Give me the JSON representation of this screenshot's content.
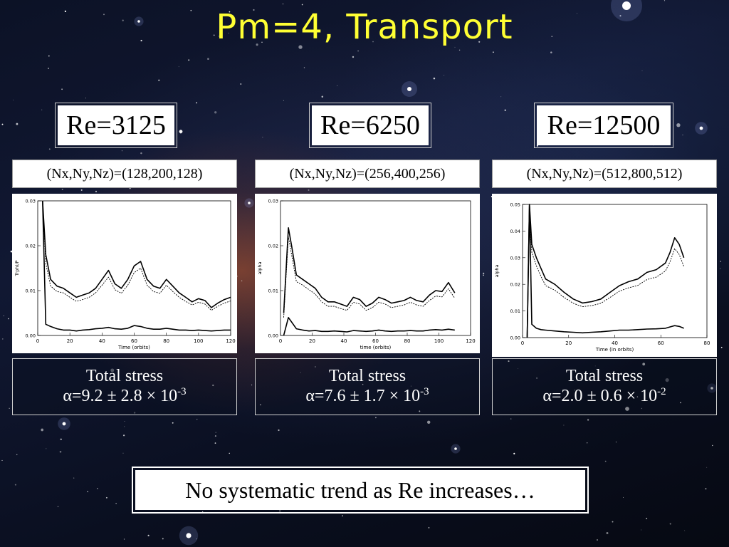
{
  "title": "Pm=4, Transport",
  "conclusion": "No systematic trend as Re increases…",
  "panels": [
    {
      "re": "Re=3125",
      "resolution": "(Nx,Ny,Nz)=(128,200,128)",
      "stress_label": "Total stress",
      "alpha_text": "α=9.2 ± 2.8 × 10",
      "alpha_exp": "-3"
    },
    {
      "re": "Re=6250",
      "resolution": "(Nx,Ny,Nz)=(256,400,256)",
      "stress_label": "Total stress",
      "alpha_text": "α=7.6 ± 1.7 × 10",
      "alpha_exp": "-3"
    },
    {
      "re": "Re=12500",
      "resolution": "(Nx,Ny,Nz)=(512,800,512)",
      "stress_label": "Total stress",
      "alpha_text": "α=2.0 ± 0.6 × 10",
      "alpha_exp": "-2"
    }
  ],
  "chart_data": [
    {
      "type": "line",
      "xlabel": "Time (orbits)",
      "ylabel": "Trphi/P",
      "xlim": [
        0,
        120
      ],
      "ylim": [
        0,
        0.03
      ],
      "xticks": [
        "0",
        "20",
        "40",
        "60",
        "80",
        "100",
        "120"
      ],
      "yticks": [
        "0.00",
        "0.01",
        "0.02",
        "0.03"
      ],
      "series": [
        {
          "style": "solid",
          "x": [
            3,
            5,
            8,
            12,
            16,
            20,
            24,
            28,
            32,
            36,
            40,
            44,
            48,
            52,
            56,
            60,
            64,
            68,
            72,
            76,
            80,
            84,
            88,
            92,
            96,
            100,
            104,
            108,
            112,
            116,
            120
          ],
          "values": [
            0.03,
            0.018,
            0.0125,
            0.011,
            0.0105,
            0.0095,
            0.0085,
            0.009,
            0.0095,
            0.0105,
            0.0125,
            0.0145,
            0.0115,
            0.0105,
            0.0125,
            0.0155,
            0.0165,
            0.0125,
            0.011,
            0.0105,
            0.0125,
            0.011,
            0.0095,
            0.0085,
            0.0075,
            0.0082,
            0.0078,
            0.0062,
            0.0072,
            0.008,
            0.0085
          ]
        },
        {
          "style": "dashed",
          "x": [
            3,
            5,
            8,
            12,
            16,
            20,
            24,
            28,
            32,
            36,
            40,
            44,
            48,
            52,
            56,
            60,
            64,
            68,
            72,
            76,
            80,
            84,
            88,
            92,
            96,
            100,
            104,
            108,
            112,
            116,
            120
          ],
          "values": [
            0.03,
            0.016,
            0.011,
            0.0098,
            0.0095,
            0.0085,
            0.0076,
            0.008,
            0.0085,
            0.0095,
            0.0112,
            0.013,
            0.0102,
            0.0094,
            0.0112,
            0.014,
            0.015,
            0.0112,
            0.0098,
            0.0094,
            0.0112,
            0.0098,
            0.0085,
            0.0076,
            0.0068,
            0.0074,
            0.007,
            0.0056,
            0.0065,
            0.0072,
            0.0077
          ]
        },
        {
          "style": "solid",
          "x": [
            3,
            5,
            8,
            12,
            16,
            20,
            24,
            28,
            32,
            36,
            40,
            44,
            48,
            52,
            56,
            60,
            64,
            68,
            72,
            76,
            80,
            84,
            88,
            92,
            96,
            100,
            104,
            108,
            112,
            116,
            120
          ],
          "values": [
            0.03,
            0.0025,
            0.002,
            0.0015,
            0.0012,
            0.0012,
            0.001,
            0.0012,
            0.0013,
            0.0015,
            0.0016,
            0.0018,
            0.0015,
            0.0014,
            0.0016,
            0.0022,
            0.002,
            0.0016,
            0.0014,
            0.0014,
            0.0016,
            0.0014,
            0.0012,
            0.0012,
            0.0011,
            0.0012,
            0.0011,
            0.001,
            0.0011,
            0.0012,
            0.0012
          ]
        }
      ]
    },
    {
      "type": "line",
      "xlabel": "time (orbits)",
      "ylabel": "alpha",
      "xlim": [
        0,
        120
      ],
      "ylim": [
        0,
        0.03
      ],
      "xticks": [
        "0",
        "20",
        "40",
        "60",
        "80",
        "100",
        "120"
      ],
      "yticks": [
        "0.00",
        "0.01",
        "0.02",
        "0.03"
      ],
      "series": [
        {
          "style": "solid",
          "x": [
            2,
            5,
            7,
            10,
            14,
            18,
            22,
            26,
            30,
            34,
            38,
            42,
            46,
            50,
            54,
            58,
            62,
            66,
            70,
            74,
            78,
            82,
            86,
            90,
            94,
            98,
            102,
            106,
            110
          ],
          "values": [
            0.005,
            0.024,
            0.02,
            0.0135,
            0.0125,
            0.0115,
            0.0105,
            0.0085,
            0.0075,
            0.0075,
            0.007,
            0.0065,
            0.0085,
            0.008,
            0.0065,
            0.0072,
            0.0085,
            0.008,
            0.0072,
            0.0075,
            0.0078,
            0.0085,
            0.0078,
            0.0075,
            0.009,
            0.01,
            0.0098,
            0.0118,
            0.0095
          ]
        },
        {
          "style": "dashed",
          "x": [
            2,
            5,
            7,
            10,
            14,
            18,
            22,
            26,
            30,
            34,
            38,
            42,
            46,
            50,
            54,
            58,
            62,
            66,
            70,
            74,
            78,
            82,
            86,
            90,
            94,
            98,
            102,
            106,
            110
          ],
          "values": [
            0.004,
            0.022,
            0.018,
            0.012,
            0.0112,
            0.0102,
            0.0092,
            0.0075,
            0.0065,
            0.0065,
            0.006,
            0.0056,
            0.0074,
            0.007,
            0.0056,
            0.0062,
            0.0074,
            0.007,
            0.0062,
            0.0065,
            0.0068,
            0.0074,
            0.0068,
            0.0065,
            0.0078,
            0.0088,
            0.0086,
            0.0104,
            0.0083
          ]
        },
        {
          "style": "solid",
          "x": [
            2,
            5,
            7,
            10,
            14,
            18,
            22,
            26,
            30,
            34,
            38,
            42,
            46,
            50,
            54,
            58,
            62,
            66,
            70,
            74,
            78,
            82,
            86,
            90,
            94,
            98,
            102,
            106,
            110
          ],
          "values": [
            0.0,
            0.004,
            0.003,
            0.0015,
            0.0012,
            0.001,
            0.0011,
            0.0009,
            0.0009,
            0.001,
            0.0009,
            0.0008,
            0.0011,
            0.001,
            0.0009,
            0.001,
            0.0012,
            0.001,
            0.0009,
            0.001,
            0.001,
            0.0011,
            0.001,
            0.001,
            0.0012,
            0.0013,
            0.0012,
            0.0014,
            0.0012
          ]
        }
      ]
    },
    {
      "type": "line",
      "xlabel": "Time (in orbits)",
      "ylabel": "alpha",
      "xlim": [
        0,
        80
      ],
      "ylim": [
        0,
        0.05
      ],
      "xticks": [
        "0",
        "20",
        "40",
        "60",
        "80"
      ],
      "yticks": [
        "0.00",
        "0.01",
        "0.02",
        "0.03",
        "0.04",
        "0.05"
      ],
      "series": [
        {
          "style": "solid",
          "x": [
            2,
            3,
            4,
            6,
            8,
            10,
            14,
            18,
            22,
            26,
            30,
            34,
            38,
            42,
            46,
            50,
            54,
            58,
            62,
            64,
            66,
            68,
            70
          ],
          "values": [
            0.0,
            0.05,
            0.035,
            0.03,
            0.026,
            0.022,
            0.02,
            0.017,
            0.0145,
            0.013,
            0.0135,
            0.0145,
            0.017,
            0.0195,
            0.021,
            0.022,
            0.0245,
            0.0255,
            0.028,
            0.032,
            0.0375,
            0.035,
            0.03
          ]
        },
        {
          "style": "dashed",
          "x": [
            2,
            3,
            4,
            6,
            8,
            10,
            14,
            18,
            22,
            26,
            30,
            34,
            38,
            42,
            46,
            50,
            54,
            58,
            62,
            64,
            66,
            68,
            70
          ],
          "values": [
            0.0,
            0.048,
            0.032,
            0.027,
            0.023,
            0.0195,
            0.0178,
            0.0151,
            0.0129,
            0.0116,
            0.012,
            0.0129,
            0.0151,
            0.0174,
            0.0187,
            0.0196,
            0.0218,
            0.0227,
            0.025,
            0.0285,
            0.0334,
            0.0312,
            0.0267
          ]
        },
        {
          "style": "solid",
          "x": [
            2,
            3,
            4,
            6,
            8,
            10,
            14,
            18,
            22,
            26,
            30,
            34,
            38,
            42,
            46,
            50,
            54,
            58,
            62,
            64,
            66,
            68,
            70
          ],
          "values": [
            0.0,
            0.05,
            0.005,
            0.0035,
            0.003,
            0.0028,
            0.0025,
            0.0022,
            0.002,
            0.0018,
            0.002,
            0.0022,
            0.0025,
            0.0028,
            0.0028,
            0.003,
            0.0032,
            0.0033,
            0.0035,
            0.004,
            0.0045,
            0.0042,
            0.0035
          ]
        }
      ]
    }
  ]
}
